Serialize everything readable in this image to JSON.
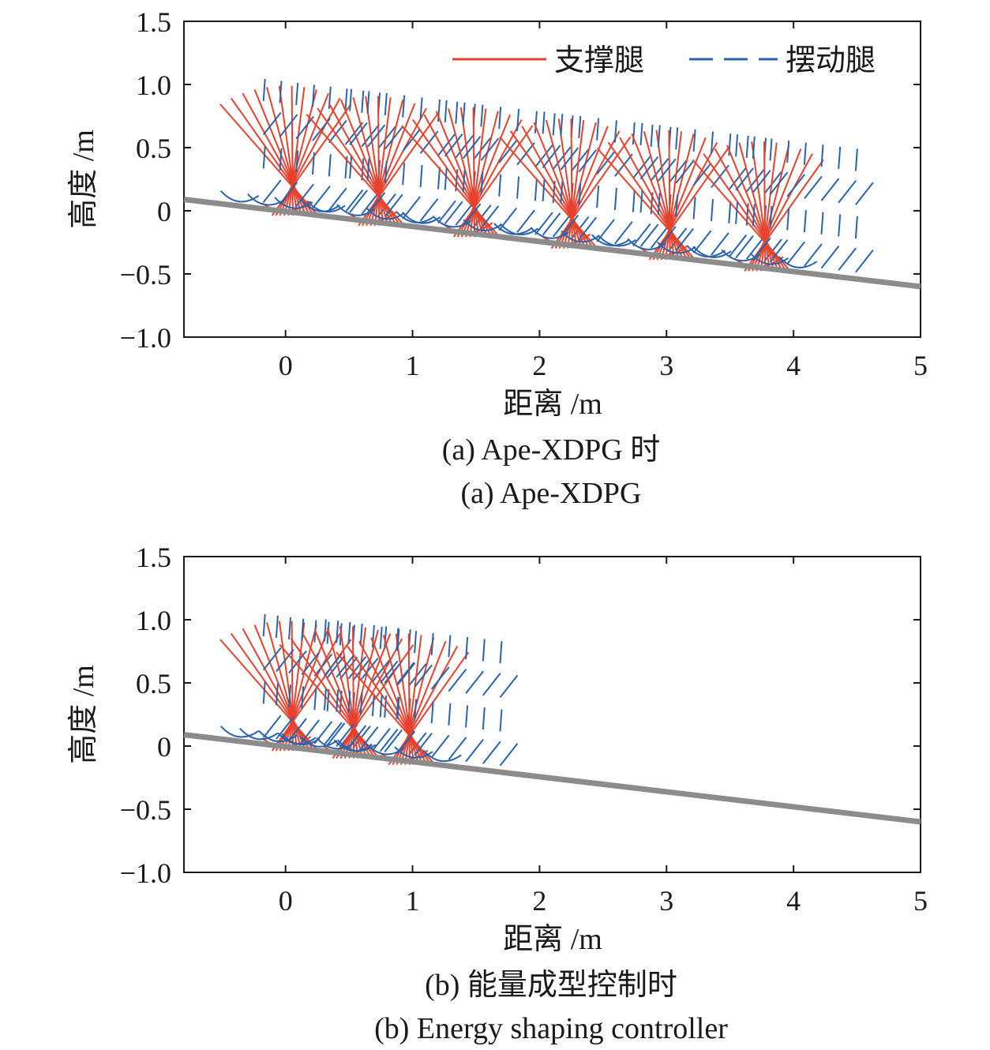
{
  "colors": {
    "support": "#e8412c",
    "swing": "#2a64ad",
    "slope": "#8c8c8c",
    "axis": "#1a1a1a"
  },
  "chart_data": [
    {
      "type": "line",
      "xlabel": "距离 /m",
      "ylabel": "高度 /m",
      "xlim": [
        -0.8,
        5.0
      ],
      "ylim": [
        -1.0,
        1.5
      ],
      "x_ticks": [
        0,
        1,
        2,
        3,
        4,
        5
      ],
      "y_ticks": [
        1.5,
        1.0,
        0.5,
        0,
        -0.5,
        -1.0
      ],
      "x_tick_labels": [
        "0",
        "1",
        "2",
        "3",
        "4",
        "5"
      ],
      "y_tick_labels": [
        "1.5",
        "1.0",
        "0.5",
        "0",
        "−0.5",
        "−1.0"
      ],
      "legend": {
        "position": "top-right",
        "entries": [
          {
            "label": "支撑腿",
            "color": "#e8412c",
            "style": "solid"
          },
          {
            "label": "摆动腿",
            "color": "#2a64ad",
            "style": "dashed"
          }
        ]
      },
      "slope": {
        "x": [
          -0.8,
          5.0
        ],
        "y": [
          0.09,
          -0.6
        ]
      },
      "steps": [
        {
          "foot_x": 0.0,
          "foot_y": 0.0,
          "top_y": 0.99
        },
        {
          "foot_x": 0.68,
          "foot_y": -0.08,
          "top_y": 0.91
        },
        {
          "foot_x": 1.43,
          "foot_y": -0.17,
          "top_y": 0.82
        },
        {
          "foot_x": 2.2,
          "foot_y": -0.26,
          "top_y": 0.73
        },
        {
          "foot_x": 2.97,
          "foot_y": -0.35,
          "top_y": 0.64
        },
        {
          "foot_x": 3.72,
          "foot_y": -0.44,
          "top_y": 0.55
        }
      ],
      "caption_cn": "(a) Ape-XDPG 时",
      "caption_en": "(a) Ape-XDPG"
    },
    {
      "type": "line",
      "xlabel": "距离 /m",
      "ylabel": "高度 /m",
      "xlim": [
        -0.8,
        5.0
      ],
      "ylim": [
        -1.0,
        1.5
      ],
      "x_ticks": [
        0,
        1,
        2,
        3,
        4,
        5
      ],
      "y_ticks": [
        1.5,
        1.0,
        0.5,
        0,
        -0.5,
        -1.0
      ],
      "x_tick_labels": [
        "0",
        "1",
        "2",
        "3",
        "4",
        "5"
      ],
      "y_tick_labels": [
        "1.5",
        "1.0",
        "0.5",
        "0",
        "−0.5",
        "−1.0"
      ],
      "slope": {
        "x": [
          -0.8,
          5.0
        ],
        "y": [
          0.09,
          -0.6
        ]
      },
      "steps": [
        {
          "foot_x": 0.0,
          "foot_y": 0.0,
          "top_y": 0.99
        },
        {
          "foot_x": 0.48,
          "foot_y": -0.06,
          "top_y": 0.95
        },
        {
          "foot_x": 0.92,
          "foot_y": -0.11,
          "top_y": 0.89
        }
      ],
      "caption_cn": "(b) 能量成型控制时",
      "caption_en": "(b) Energy shaping controller"
    }
  ]
}
